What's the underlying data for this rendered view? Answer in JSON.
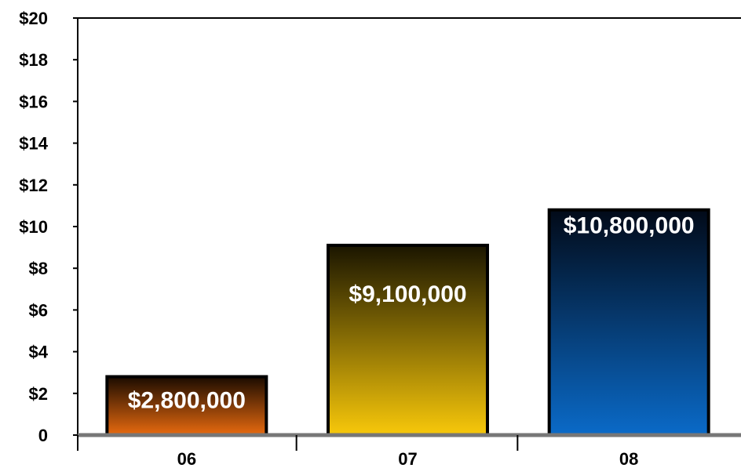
{
  "chart_data": {
    "type": "bar",
    "categories": [
      "06",
      "07",
      "08"
    ],
    "values": [
      2.8,
      9.1,
      10.8
    ],
    "data_labels": [
      "$2,800,000",
      "$9,100,000",
      "$10,800,000"
    ],
    "ylim": [
      0,
      20
    ],
    "y_ticks": [
      0,
      2,
      4,
      6,
      8,
      10,
      12,
      14,
      16,
      18,
      20
    ],
    "y_tick_labels": [
      "0",
      "$2",
      "$4",
      "$6",
      "$8",
      "$10",
      "$12",
      "$14",
      "$16",
      "$18",
      "$20"
    ],
    "grid": false,
    "legend": "none",
    "bar_colors": [
      {
        "top": "#1a0b00",
        "bottom": "#e86a0f"
      },
      {
        "top": "#1a1500",
        "bottom": "#f8c80a"
      },
      {
        "top": "#020a18",
        "bottom": "#0a6ac8"
      }
    ],
    "axis_color": "#000000",
    "baseline_color": "#777777"
  }
}
